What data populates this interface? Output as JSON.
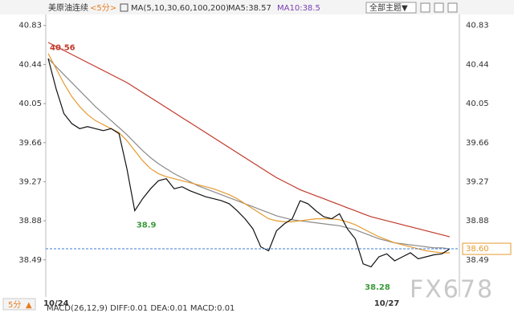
{
  "header": {
    "instrument": "美原油连续",
    "period": "<5分>",
    "ma_set": "MA(5,10,30,60,100,200)",
    "ma5": "MA5:38.57",
    "ma10": "MA10:38.5",
    "theme_button": "全部主题▼"
  },
  "chart_data": {
    "type": "line",
    "categories": [
      null,
      "10/24",
      null,
      null,
      null,
      null,
      null,
      null,
      null,
      null,
      null,
      null,
      null,
      null,
      null,
      null,
      null,
      null,
      null,
      null,
      null,
      null,
      null,
      null,
      null,
      null,
      null,
      null,
      null,
      null,
      null,
      null,
      null,
      null,
      null,
      null,
      null,
      null,
      null,
      null,
      null,
      null,
      null,
      "10/27",
      null,
      null,
      null,
      null,
      null,
      null,
      null,
      null
    ],
    "series": [
      {
        "color": "#c0392b",
        "values": [
          40.66,
          40.62,
          40.58,
          40.54,
          40.5,
          40.46,
          40.42,
          40.38,
          40.34,
          40.3,
          40.26,
          40.21,
          40.16,
          40.11,
          40.06,
          40.01,
          39.96,
          39.91,
          39.86,
          39.81,
          39.76,
          39.71,
          39.66,
          39.61,
          39.56,
          39.51,
          39.46,
          39.41,
          39.36,
          39.31,
          39.27,
          39.23,
          39.19,
          39.16,
          39.13,
          39.1,
          39.07,
          39.04,
          39.01,
          38.98,
          38.95,
          38.92,
          38.9,
          38.88,
          38.86,
          38.84,
          38.82,
          38.8,
          38.78,
          38.76,
          38.74,
          38.72
        ]
      },
      {
        "color": "#8a8a8a",
        "values": [
          40.5,
          40.42,
          40.34,
          40.26,
          40.18,
          40.1,
          40.02,
          39.95,
          39.88,
          39.81,
          39.74,
          39.66,
          39.58,
          39.51,
          39.45,
          39.4,
          39.35,
          39.31,
          39.27,
          39.23,
          39.2,
          39.17,
          39.14,
          39.11,
          39.08,
          39.05,
          39.02,
          38.99,
          38.96,
          38.93,
          38.91,
          38.89,
          38.88,
          38.87,
          38.86,
          38.85,
          38.84,
          38.83,
          38.81,
          38.79,
          38.76,
          38.73,
          38.7,
          38.68,
          38.66,
          38.65,
          38.64,
          38.63,
          38.62,
          38.61,
          38.61,
          38.6
        ]
      },
      {
        "color": "#e69a2e",
        "values": [
          40.55,
          40.4,
          40.25,
          40.12,
          40.02,
          39.94,
          39.88,
          39.84,
          39.8,
          39.76,
          39.68,
          39.58,
          39.48,
          39.4,
          39.35,
          39.32,
          39.3,
          39.28,
          39.26,
          39.24,
          39.22,
          39.2,
          39.17,
          39.14,
          39.1,
          39.05,
          39.0,
          38.95,
          38.9,
          38.88,
          38.87,
          38.87,
          38.88,
          38.89,
          38.9,
          38.9,
          38.9,
          38.89,
          38.87,
          38.84,
          38.8,
          38.76,
          38.72,
          38.69,
          38.66,
          38.64,
          38.62,
          38.6,
          38.58,
          38.57,
          38.56,
          38.56
        ]
      },
      {
        "color": "#111111",
        "values": [
          40.5,
          40.2,
          39.95,
          39.85,
          39.8,
          39.82,
          39.8,
          39.78,
          39.8,
          39.75,
          39.4,
          38.98,
          39.1,
          39.2,
          39.28,
          39.3,
          39.2,
          39.22,
          39.18,
          39.15,
          39.12,
          39.1,
          39.08,
          39.05,
          38.98,
          38.9,
          38.8,
          38.62,
          38.58,
          38.78,
          38.85,
          38.9,
          39.08,
          39.05,
          38.98,
          38.92,
          38.9,
          38.95,
          38.8,
          38.7,
          38.45,
          38.42,
          38.52,
          38.55,
          38.48,
          38.52,
          38.56,
          38.5,
          38.52,
          38.54,
          38.55,
          38.6
        ]
      }
    ],
    "ylim": [
      38.32,
      40.94
    ],
    "yticks": [
      38.49,
      38.88,
      39.27,
      39.66,
      40.05,
      40.44,
      40.83
    ],
    "annotations": [
      {
        "x": 0,
        "value": 40.56,
        "color": "#c0392b"
      },
      {
        "x": 11,
        "value": 38.9,
        "color": "#3a9a3a"
      },
      {
        "x": 40,
        "value": 38.28,
        "color": "#3a9a3a"
      }
    ],
    "current_price": {
      "value": 38.6,
      "label": "38.60"
    }
  },
  "footer": {
    "period": "5分",
    "indicator": "MACD(26,12,9) DIFF:0.01 DEA:0.01 MACD:0.01",
    "watermark": "FX678"
  }
}
